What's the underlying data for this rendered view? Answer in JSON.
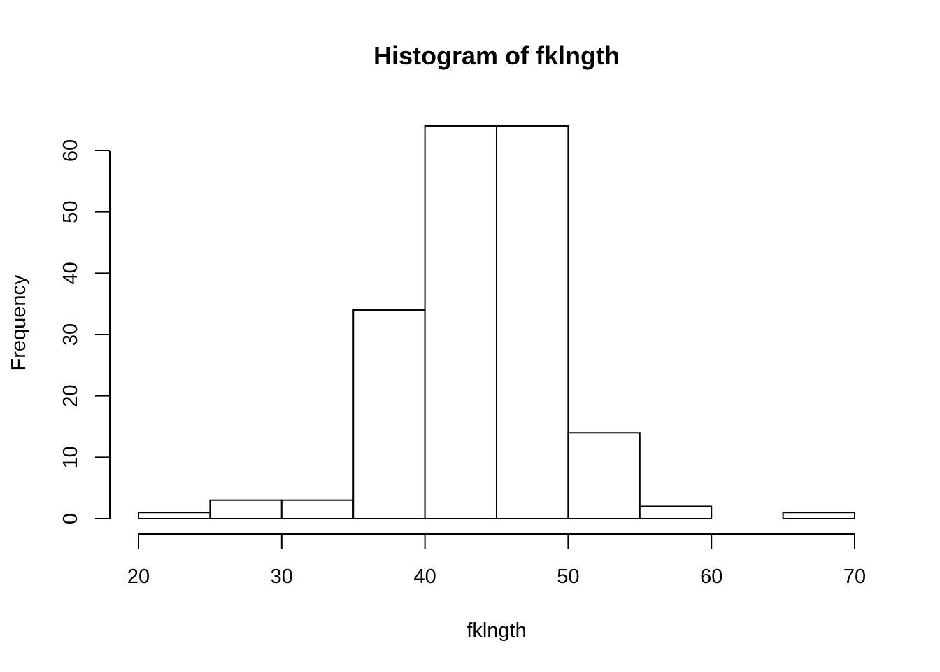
{
  "chart_data": {
    "type": "bar",
    "subtype": "histogram",
    "title": "Histogram of fklngth",
    "xlabel": "fklngth",
    "ylabel": "Frequency",
    "bins": [
      {
        "start": 20,
        "end": 25,
        "count": 1
      },
      {
        "start": 25,
        "end": 30,
        "count": 3
      },
      {
        "start": 30,
        "end": 35,
        "count": 3
      },
      {
        "start": 35,
        "end": 40,
        "count": 34
      },
      {
        "start": 40,
        "end": 45,
        "count": 64
      },
      {
        "start": 45,
        "end": 50,
        "count": 64
      },
      {
        "start": 50,
        "end": 55,
        "count": 14
      },
      {
        "start": 55,
        "end": 60,
        "count": 2
      },
      {
        "start": 60,
        "end": 65,
        "count": 0
      },
      {
        "start": 65,
        "end": 70,
        "count": 1
      }
    ],
    "xticks": [
      "20",
      "30",
      "40",
      "50",
      "60",
      "70"
    ],
    "yticks": [
      "0",
      "10",
      "20",
      "30",
      "40",
      "50",
      "60"
    ],
    "xlim": [
      20,
      70
    ],
    "ylim": [
      0,
      64
    ],
    "grid": false,
    "legend": "none"
  }
}
